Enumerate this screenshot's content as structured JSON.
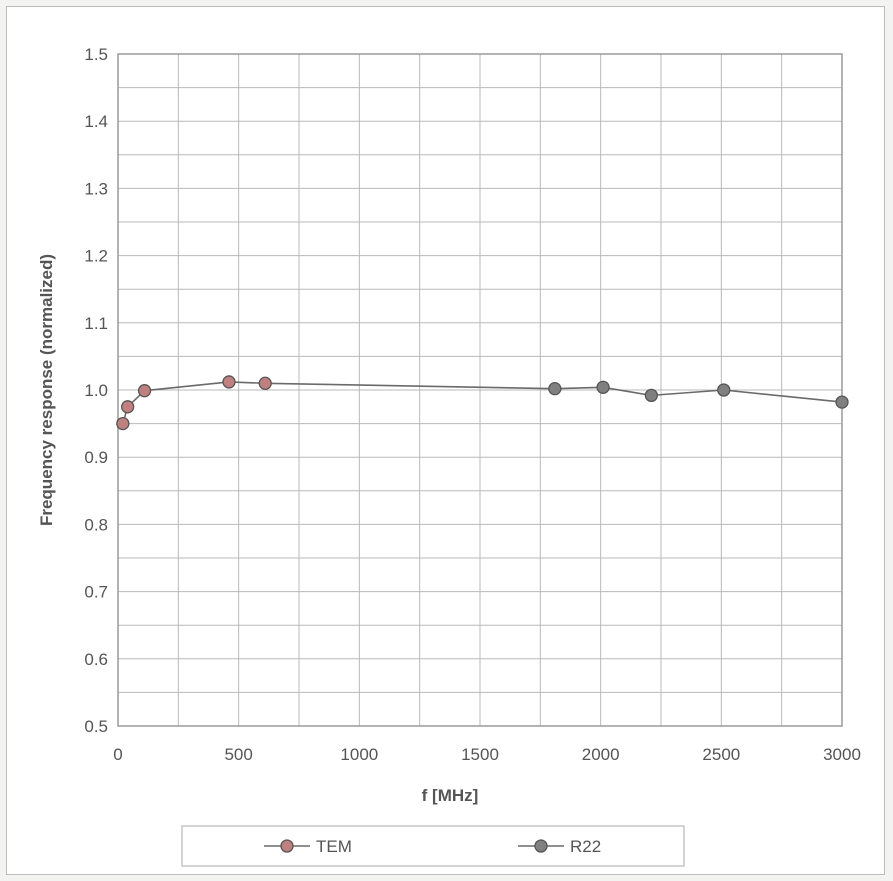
{
  "chart_data": {
    "type": "line",
    "xlabel": "f [MHz]",
    "ylabel": "Frequency response (normalized)",
    "xlim": [
      0,
      3000
    ],
    "ylim": [
      0.5,
      1.5
    ],
    "x_ticks": [
      "0",
      "500",
      "1000",
      "1500",
      "2000",
      "2500",
      "3000"
    ],
    "y_ticks": [
      "0.5",
      "0.6",
      "0.7",
      "0.8",
      "0.9",
      "1.0",
      "1.1",
      "1.2",
      "1.3",
      "1.4",
      "1.5"
    ],
    "grid": true,
    "legend_position": "bottom",
    "series": [
      {
        "name": "TEM",
        "color": "#c08080",
        "x": [
          20,
          40,
          110,
          460,
          610
        ],
        "y": [
          0.95,
          0.975,
          0.999,
          1.012,
          1.01
        ]
      },
      {
        "name": "R22",
        "color": "#808080",
        "x": [
          1810,
          2010,
          2210,
          2510,
          3000
        ],
        "y": [
          1.002,
          1.004,
          0.992,
          1.0,
          0.982
        ]
      }
    ],
    "connector": {
      "from": [
        610,
        1.01
      ],
      "to": [
        1810,
        1.002
      ]
    }
  }
}
